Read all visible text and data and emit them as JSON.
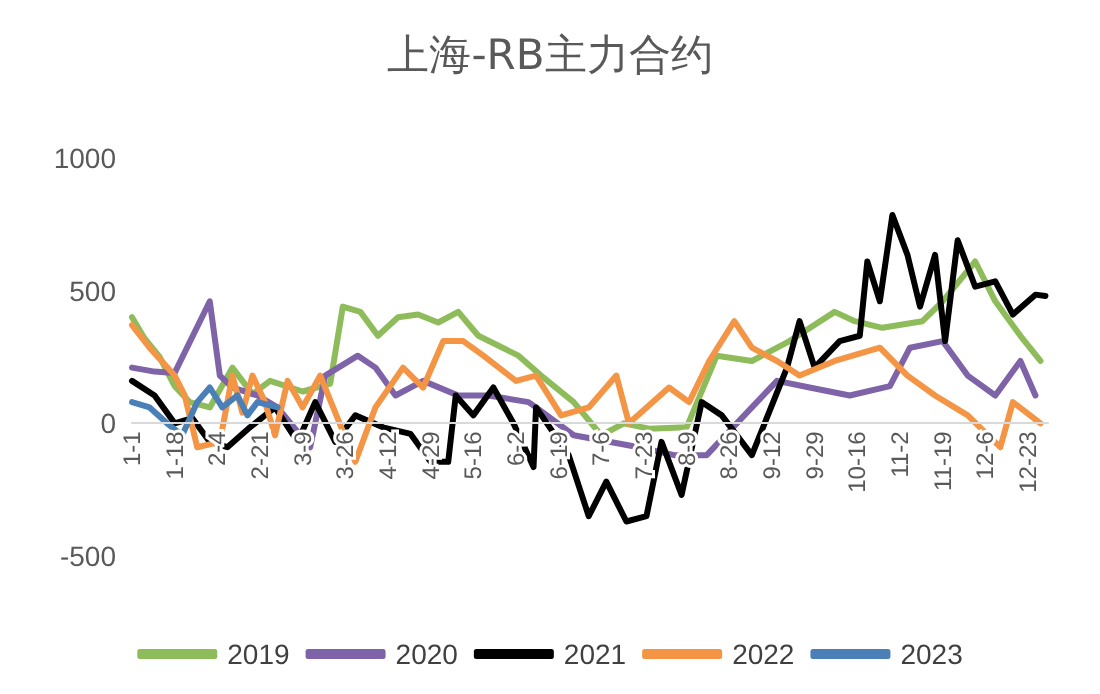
{
  "chart_data": {
    "type": "line",
    "title": "上海-RB主力合约",
    "xlim": [
      "--01-01",
      "--12-31"
    ],
    "xticks": [
      {
        "value": "--01-01",
        "label": "1-1"
      },
      {
        "value": "--01-18",
        "label": "1-18"
      },
      {
        "value": "--02-04",
        "label": "2-4"
      },
      {
        "value": "--02-21",
        "label": "2-21"
      },
      {
        "value": "--03-09",
        "label": "3-9"
      },
      {
        "value": "--03-26",
        "label": "3-26"
      },
      {
        "value": "--04-12",
        "label": "4-12"
      },
      {
        "value": "--04-29",
        "label": "4-29"
      },
      {
        "value": "--05-16",
        "label": "5-16"
      },
      {
        "value": "--06-02",
        "label": "6-2"
      },
      {
        "value": "--06-19",
        "label": "6-19"
      },
      {
        "value": "--07-06",
        "label": "7-6"
      },
      {
        "value": "--07-23",
        "label": "7-23"
      },
      {
        "value": "--08-09",
        "label": "8-9"
      },
      {
        "value": "--08-26",
        "label": "8-26"
      },
      {
        "value": "--09-12",
        "label": "9-12"
      },
      {
        "value": "--09-29",
        "label": "9-29"
      },
      {
        "value": "--10-16",
        "label": "10-16"
      },
      {
        "value": "--11-02",
        "label": "11-2"
      },
      {
        "value": "--11-19",
        "label": "11-19"
      },
      {
        "value": "--12-06",
        "label": "12-6"
      },
      {
        "value": "--12-23",
        "label": "12-23"
      }
    ],
    "ylim": [
      -500,
      1000
    ],
    "yticks": [
      -500,
      0,
      500,
      1000
    ],
    "grid": false,
    "legend": "bottom",
    "line_style": "solid",
    "series": [
      {
        "name": "2019",
        "color": "#8fbc5a",
        "x": [
          "--01-01",
          "--01-06",
          "--01-12",
          "--01-18",
          "--01-24",
          "--02-01",
          "--02-10",
          "--02-18",
          "--02-25",
          "--03-09",
          "--03-20",
          "--03-25",
          "--04-01",
          "--04-08",
          "--04-16",
          "--04-24",
          "--05-02",
          "--05-10",
          "--05-18",
          "--06-03",
          "--06-12",
          "--06-25",
          "--07-06",
          "--07-15",
          "--07-25",
          "--08-09",
          "--08-21",
          "--09-04",
          "--09-19",
          "--10-07",
          "--10-15",
          "--10-26",
          "--11-11",
          "--11-19",
          "--12-02",
          "--12-10",
          "--12-20",
          "--12-28"
        ],
        "values": [
          400,
          320,
          250,
          140,
          80,
          60,
          210,
          110,
          160,
          120,
          150,
          440,
          420,
          330,
          400,
          410,
          380,
          420,
          330,
          255,
          180,
          80,
          -45,
          0,
          -20,
          -15,
          255,
          235,
          310,
          420,
          385,
          360,
          385,
          460,
          610,
          460,
          330,
          235
        ]
      },
      {
        "name": "2020",
        "color": "#7f63a8",
        "x": [
          "--01-01",
          "--01-10",
          "--01-18",
          "--02-01",
          "--02-05",
          "--02-10",
          "--02-20",
          "--02-28",
          "--03-12",
          "--03-18",
          "--03-31",
          "--04-07",
          "--04-15",
          "--04-26",
          "--05-10",
          "--05-22",
          "--06-07",
          "--06-10",
          "--06-25",
          "--07-21",
          "--08-04",
          "--08-17",
          "--09-04",
          "--09-14",
          "--09-27",
          "--10-13",
          "--10-29",
          "--11-06",
          "--11-19",
          "--11-29",
          "--12-10",
          "--12-20",
          "--12-26"
        ],
        "values": [
          210,
          195,
          190,
          460,
          180,
          135,
          105,
          60,
          -90,
          180,
          255,
          210,
          105,
          160,
          105,
          105,
          80,
          60,
          -45,
          -90,
          -120,
          -120,
          60,
          160,
          135,
          105,
          140,
          285,
          310,
          180,
          105,
          235,
          105
        ]
      },
      {
        "name": "2021",
        "color": "#000000",
        "x": [
          "--01-01",
          "--01-10",
          "--01-18",
          "--01-25",
          "--02-01",
          "--02-08",
          "--02-17",
          "--02-27",
          "--03-07",
          "--03-14",
          "--03-22",
          "--03-30",
          "--04-10",
          "--04-21",
          "--04-29",
          "--05-06",
          "--05-09",
          "--05-16",
          "--05-24",
          "--06-01",
          "--06-09",
          "--06-10",
          "--06-23",
          "--07-01",
          "--07-08",
          "--07-16",
          "--07-24",
          "--07-30",
          "--08-07",
          "--08-15",
          "--08-23",
          "--09-04",
          "--09-18",
          "--09-23",
          "--09-29",
          "--10-09",
          "--10-17",
          "--10-20",
          "--10-25",
          "--10-30",
          "--11-05",
          "--11-10",
          "--11-16",
          "--11-20",
          "--11-25",
          "--12-02",
          "--12-10",
          "--12-17",
          "--12-26",
          "--12-30"
        ],
        "values": [
          160,
          105,
          0,
          20,
          -70,
          -90,
          -15,
          60,
          -70,
          80,
          -70,
          30,
          -15,
          -40,
          -145,
          -145,
          105,
          30,
          135,
          0,
          -165,
          60,
          -120,
          -350,
          -220,
          -370,
          -350,
          -70,
          -270,
          80,
          30,
          -120,
          210,
          385,
          210,
          310,
          330,
          610,
          460,
          785,
          635,
          440,
          635,
          310,
          690,
          515,
          535,
          410,
          485,
          480
        ]
      },
      {
        "name": "2022",
        "color": "#f39545",
        "x": [
          "--01-01",
          "--01-08",
          "--01-18",
          "--01-22",
          "--01-27",
          "--02-05",
          "--02-10",
          "--02-14",
          "--02-18",
          "--02-23",
          "--02-27",
          "--03-03",
          "--03-09",
          "--03-16",
          "--03-30",
          "--04-07",
          "--04-18",
          "--04-26",
          "--05-04",
          "--05-12",
          "--05-20",
          "--06-02",
          "--06-10",
          "--06-20",
          "--07-01",
          "--07-12",
          "--07-17",
          "--08-02",
          "--08-10",
          "--08-18",
          "--08-28",
          "--09-04",
          "--09-14",
          "--09-23",
          "--10-07",
          "--10-25",
          "--11-05",
          "--11-16",
          "--11-29",
          "--12-12",
          "--12-17",
          "--12-28"
        ],
        "values": [
          370,
          285,
          180,
          105,
          -90,
          -70,
          180,
          40,
          180,
          80,
          -45,
          160,
          60,
          180,
          -145,
          60,
          210,
          135,
          310,
          310,
          255,
          160,
          180,
          30,
          60,
          180,
          0,
          135,
          80,
          235,
          385,
          285,
          235,
          180,
          235,
          285,
          180,
          105,
          30,
          -90,
          80,
          0
        ]
      },
      {
        "name": "2023",
        "color": "#4a7fb8",
        "x": [
          "--01-01",
          "--01-08",
          "--01-15",
          "--01-21",
          "--01-27",
          "--02-01",
          "--02-06",
          "--02-12",
          "--02-16",
          "--02-20",
          "--02-28"
        ],
        "values": [
          80,
          60,
          0,
          -45,
          80,
          135,
          60,
          105,
          30,
          80,
          60
        ]
      }
    ]
  }
}
